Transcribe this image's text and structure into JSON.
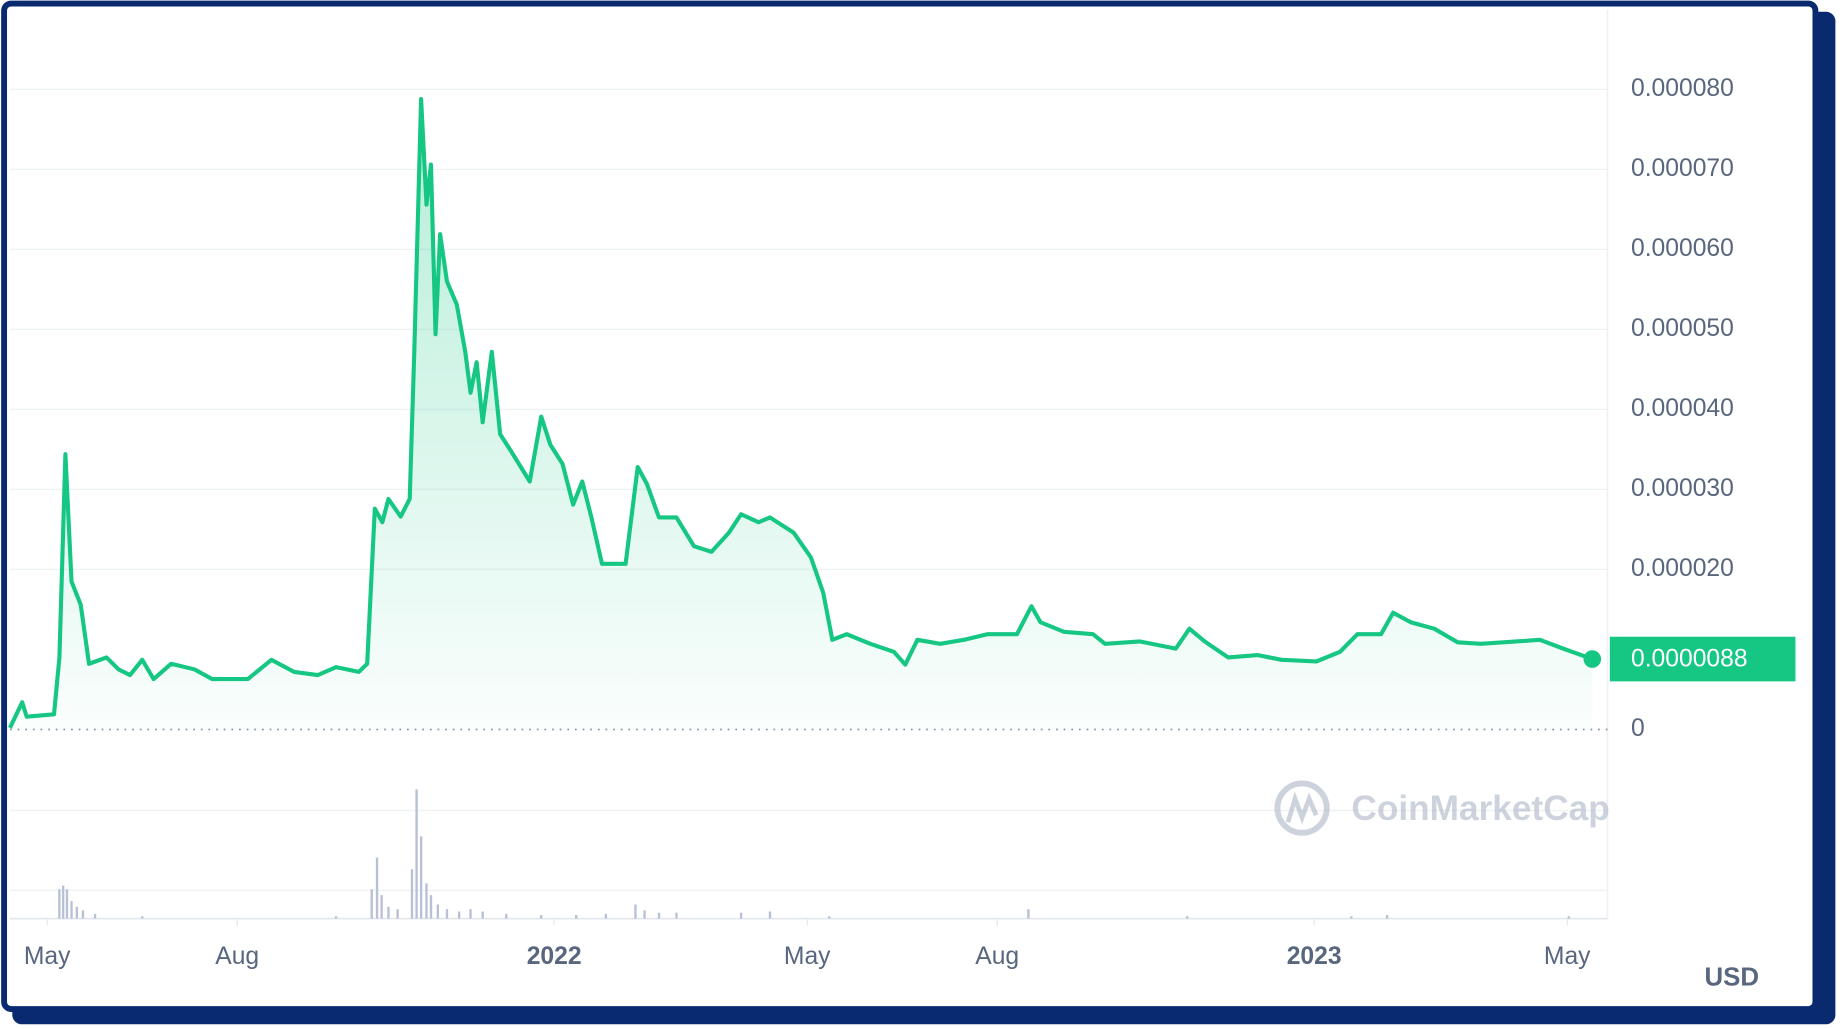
{
  "chart_data": {
    "type": "line",
    "xlim": [
      2021.284,
      2023.386
    ],
    "ylim": [
      0,
      9e-05
    ],
    "xticks": [
      {
        "value": 2021.333,
        "label": "May"
      },
      {
        "value": 2021.583,
        "label": "Aug"
      },
      {
        "value": 2022,
        "label": "2022"
      },
      {
        "value": 2022.333,
        "label": "May"
      },
      {
        "value": 2022.583,
        "label": "Aug"
      },
      {
        "value": 2023,
        "label": "2023"
      },
      {
        "value": 2023.333,
        "label": "May"
      }
    ],
    "yticks": [
      0,
      {
        "value": 2e-05,
        "label": "0.000020"
      },
      {
        "value": 3e-05,
        "label": "0.000030"
      },
      {
        "value": 4e-05,
        "label": "0.000040"
      },
      {
        "value": 5e-05,
        "label": "0.000050"
      },
      {
        "value": 6e-05,
        "label": "0.000060"
      },
      {
        "value": 7e-05,
        "label": "0.000070"
      },
      {
        "value": 8e-05,
        "label": "0.000080"
      }
    ],
    "grid": true,
    "currency": "USD",
    "watermark": "CoinMarketCap",
    "last_price": {
      "value": 8.8e-06,
      "label": "0.0000088"
    },
    "series": [
      {
        "color": "#16c784",
        "x": [
          2021.284,
          2021.3,
          2021.306,
          2021.342,
          2021.349,
          2021.357,
          2021.365,
          2021.377,
          2021.388,
          2021.411,
          2021.427,
          2021.442,
          2021.458,
          2021.473,
          2021.496,
          2021.527,
          2021.55,
          2021.597,
          2021.628,
          2021.658,
          2021.689,
          2021.713,
          2021.743,
          2021.754,
          2021.764,
          2021.774,
          2021.782,
          2021.798,
          2021.81,
          2021.816,
          2021.825,
          2021.832,
          2021.838,
          2021.844,
          2021.85,
          2021.859,
          2021.872,
          2021.883,
          2021.89,
          2021.898,
          2021.906,
          2021.918,
          2021.929,
          2021.944,
          2021.968,
          2021.983,
          2021.995,
          2022.011,
          2022.025,
          2022.037,
          2022.049,
          2022.063,
          2022.094,
          2022.11,
          2022.122,
          2022.138,
          2022.161,
          2022.184,
          2022.207,
          2022.23,
          2022.246,
          2022.269,
          2022.284,
          2022.315,
          2022.338,
          2022.354,
          2022.366,
          2022.385,
          2022.416,
          2022.447,
          2022.462,
          2022.478,
          2022.508,
          2022.539,
          2022.57,
          2022.609,
          2022.628,
          2022.64,
          2022.671,
          2022.709,
          2022.725,
          2022.771,
          2022.818,
          2022.836,
          2022.856,
          2022.887,
          2022.926,
          2022.957,
          2023.003,
          2023.034,
          2023.057,
          2023.088,
          2023.104,
          2023.127,
          2023.158,
          2023.189,
          2023.219,
          2023.266,
          2023.297,
          2023.328,
          2023.366
        ],
        "values": [
          2e-07,
          3.4e-06,
          1.6e-06,
          1.9e-06,
          9e-06,
          3.44e-05,
          1.85e-05,
          1.56e-05,
          8.2e-06,
          9e-06,
          7.5e-06,
          6.8e-06,
          8.7e-06,
          6.3e-06,
          8.2e-06,
          7.5e-06,
          6.3e-06,
          6.3e-06,
          8.7e-06,
          7.2e-06,
          6.8e-06,
          7.8e-06,
          7.2e-06,
          8.2e-06,
          2.76e-05,
          2.59e-05,
          2.88e-05,
          2.66e-05,
          2.88e-05,
          4.72e-05,
          7.88e-05,
          6.56e-05,
          7.06e-05,
          4.94e-05,
          6.19e-05,
          5.6e-05,
          5.31e-05,
          4.72e-05,
          4.21e-05,
          4.59e-05,
          3.84e-05,
          4.72e-05,
          3.69e-05,
          3.47e-05,
          3.1e-05,
          3.91e-05,
          3.56e-05,
          3.32e-05,
          2.81e-05,
          3.1e-05,
          2.65e-05,
          2.07e-05,
          2.07e-05,
          3.28e-05,
          3.07e-05,
          2.65e-05,
          2.65e-05,
          2.29e-05,
          2.22e-05,
          2.46e-05,
          2.69e-05,
          2.59e-05,
          2.65e-05,
          2.46e-05,
          2.15e-05,
          1.71e-05,
          1.12e-05,
          1.19e-05,
          1.07e-05,
          9.7e-06,
          8.1e-06,
          1.12e-05,
          1.07e-05,
          1.12e-05,
          1.19e-05,
          1.19e-05,
          1.54e-05,
          1.34e-05,
          1.22e-05,
          1.19e-05,
          1.07e-05,
          1.1e-05,
          1.01e-05,
          1.26e-05,
          1.1e-05,
          9e-06,
          9.3e-06,
          8.7e-06,
          8.5e-06,
          9.7e-06,
          1.19e-05,
          1.19e-05,
          1.46e-05,
          1.34e-05,
          1.26e-05,
          1.09e-05,
          1.07e-05,
          1.1e-05,
          1.12e-05,
          1.01e-05,
          8.8e-06
        ]
      }
    ],
    "volume": {
      "color": "#b8c0d6",
      "x": [
        2021.349,
        2021.354,
        2021.359,
        2021.365,
        2021.372,
        2021.38,
        2021.396,
        2021.458,
        2021.713,
        2021.76,
        2021.767,
        2021.773,
        2021.782,
        2021.794,
        2021.813,
        2021.819,
        2021.825,
        2021.832,
        2021.838,
        2021.847,
        2021.859,
        2021.875,
        2021.89,
        2021.906,
        2021.937,
        2021.983,
        2022.029,
        2022.068,
        2022.107,
        2022.119,
        2022.138,
        2022.161,
        2022.246,
        2022.284,
        2022.362,
        2022.624,
        2022.833,
        2023.049,
        2023.096,
        2023.335
      ],
      "values": [
        25,
        28,
        25,
        15,
        10,
        7,
        4,
        2,
        2,
        25,
        52,
        20,
        10,
        8,
        42,
        110,
        70,
        30,
        20,
        12,
        8,
        6,
        8,
        6,
        4,
        3,
        3,
        4,
        12,
        7,
        5,
        5,
        5,
        6,
        2,
        8,
        2,
        2,
        3,
        2
      ]
    }
  }
}
